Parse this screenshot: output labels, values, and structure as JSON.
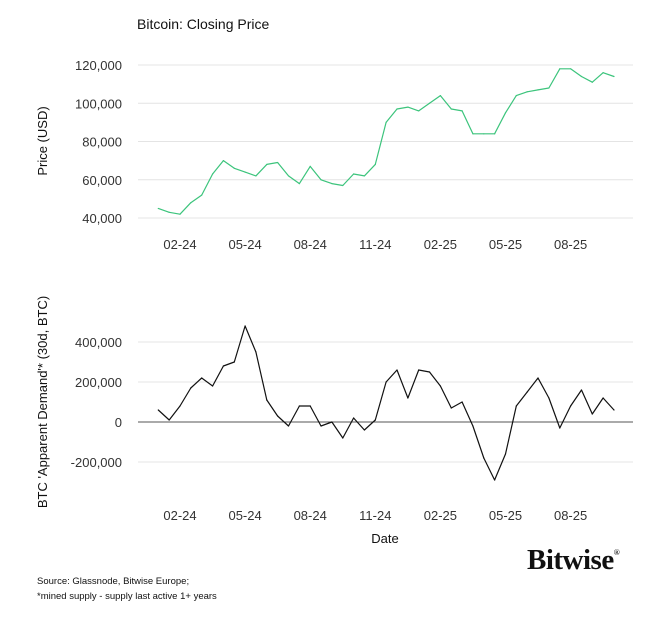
{
  "chart_data": [
    {
      "type": "line",
      "title": "Bitcoin: Closing Price",
      "xlabel": "",
      "ylabel": "Price (USD)",
      "ylim": [
        40000,
        120000
      ],
      "yticks": [
        40000,
        60000,
        80000,
        100000,
        120000
      ],
      "ytick_labels": [
        "40,000",
        "60,000",
        "80,000",
        "100,000",
        "120,000"
      ],
      "xtick_labels": [
        "02-24",
        "05-24",
        "08-24",
        "11-24",
        "02-25",
        "05-25",
        "08-25"
      ],
      "x_unit": "months since Jan 2024",
      "xtick_positions": [
        1,
        4,
        7,
        10,
        13,
        16,
        19
      ],
      "grid": "horizontal",
      "color": "#3cc47c",
      "x": [
        0,
        0.5,
        1,
        1.5,
        2,
        2.5,
        3,
        3.5,
        4,
        4.5,
        5,
        5.5,
        6,
        6.5,
        7,
        7.5,
        8,
        8.5,
        9,
        9.5,
        10,
        10.5,
        11,
        11.5,
        12,
        12.5,
        13,
        13.5,
        14,
        14.5,
        15,
        15.5,
        16,
        16.5,
        17,
        17.5,
        18,
        18.5,
        19,
        19.5,
        20,
        20.5,
        21
      ],
      "values": [
        45000,
        43000,
        42000,
        48000,
        52000,
        63000,
        70000,
        66000,
        64000,
        62000,
        68000,
        69000,
        62000,
        58000,
        67000,
        60000,
        58000,
        57000,
        63000,
        62000,
        68000,
        90000,
        97000,
        98000,
        96000,
        100000,
        104000,
        97000,
        96000,
        84000,
        84000,
        84000,
        95000,
        104000,
        106000,
        107000,
        108000,
        118000,
        118000,
        114000,
        111000,
        116000,
        114000
      ]
    },
    {
      "type": "line",
      "title": "",
      "xlabel": "Date",
      "ylabel": "BTC 'Apparent Demand'* (30d, BTC)",
      "ylim": [
        -300000,
        500000
      ],
      "yticks": [
        -200000,
        0,
        200000,
        400000
      ],
      "ytick_labels": [
        "-200,000",
        "0",
        "200,000",
        "400,000"
      ],
      "xtick_labels": [
        "02-24",
        "05-24",
        "08-24",
        "11-24",
        "02-25",
        "05-25",
        "08-25"
      ],
      "xtick_positions": [
        1,
        4,
        7,
        10,
        13,
        16,
        19
      ],
      "grid": "horizontal",
      "color": "#111111",
      "x": [
        0,
        0.5,
        1,
        1.5,
        2,
        2.5,
        3,
        3.5,
        4,
        4.5,
        5,
        5.5,
        6,
        6.5,
        7,
        7.5,
        8,
        8.5,
        9,
        9.5,
        10,
        10.5,
        11,
        11.5,
        12,
        12.5,
        13,
        13.5,
        14,
        14.5,
        15,
        15.5,
        16,
        16.5,
        17,
        17.5,
        18,
        18.5,
        19,
        19.5,
        20,
        20.5,
        21
      ],
      "values": [
        60000,
        10000,
        80000,
        170000,
        220000,
        180000,
        280000,
        300000,
        480000,
        350000,
        110000,
        30000,
        -20000,
        80000,
        80000,
        -20000,
        0,
        -80000,
        20000,
        -40000,
        10000,
        200000,
        260000,
        120000,
        260000,
        250000,
        180000,
        70000,
        100000,
        -20000,
        -180000,
        -290000,
        -160000,
        80000,
        150000,
        220000,
        120000,
        -30000,
        80000,
        160000,
        40000,
        120000,
        60000
      ]
    }
  ],
  "footer": {
    "source": "Source: Glassnode, Bitwise Europe;",
    "note": "*mined supply - supply last active 1+ years",
    "logo": "Bitwise"
  }
}
